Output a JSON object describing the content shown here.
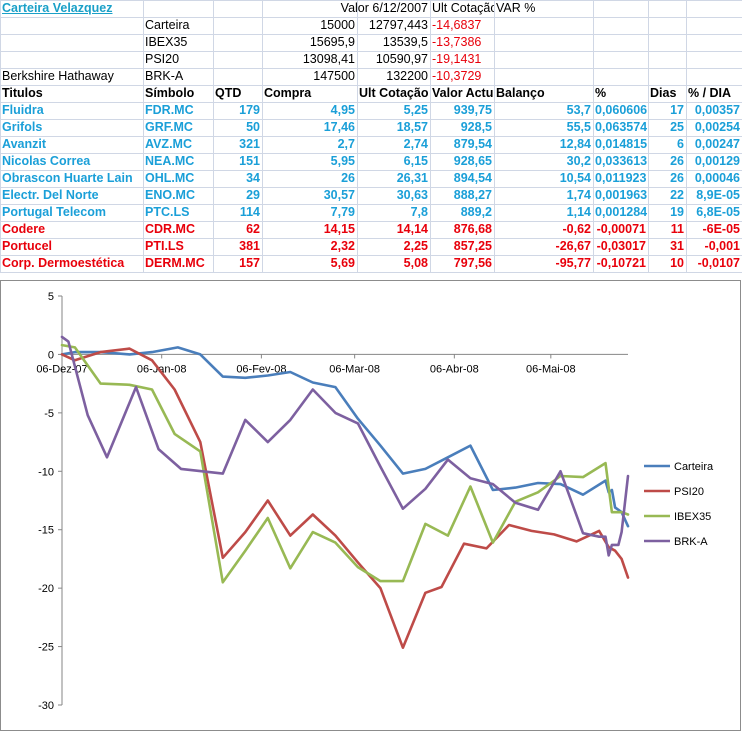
{
  "sheet": {
    "portfolio_title": "Carteira Velazquez",
    "header_row": {
      "valor": "Valor 6/12/2007",
      "ult": "Ult Cotação",
      "var": "VAR %"
    },
    "indices": [
      {
        "label": "Carteira",
        "valor": "15000",
        "ult": "12797,443",
        "var": "-14,6837"
      },
      {
        "label": "IBEX35",
        "valor": "15695,9",
        "ult": "13539,5",
        "var": "-13,7386"
      },
      {
        "label": "PSI20",
        "valor": "13098,41",
        "ult": "10590,97",
        "var": "-19,1431"
      },
      {
        "name": "Berkshire Hathaway",
        "label": "BRK-A",
        "valor": "147500",
        "ult": "132200",
        "var": "-10,3729"
      }
    ],
    "columns": [
      "Titulos",
      "Símbolo",
      "QTD",
      "Compra",
      "Ult Cotação",
      "Valor Actu",
      "Balanço",
      "%",
      "Dias",
      "% / DIA"
    ],
    "rows": [
      {
        "name": "Fluidra",
        "symbol": "FDR.MC",
        "qtd": "179",
        "compra": "4,95",
        "ult": "5,25",
        "valor": "939,75",
        "balanco": "53,7",
        "pct": "0,060606",
        "dias": "17",
        "pctdia": "0,00357",
        "positive": true
      },
      {
        "name": "Grifols",
        "symbol": "GRF.MC",
        "qtd": "50",
        "compra": "17,46",
        "ult": "18,57",
        "valor": "928,5",
        "balanco": "55,5",
        "pct": "0,063574",
        "dias": "25",
        "pctdia": "0,00254",
        "positive": true
      },
      {
        "name": "Avanzit",
        "symbol": "AVZ.MC",
        "qtd": "321",
        "compra": "2,7",
        "ult": "2,74",
        "valor": "879,54",
        "balanco": "12,84",
        "pct": "0,014815",
        "dias": "6",
        "pctdia": "0,00247",
        "positive": true
      },
      {
        "name": "Nicolas Correa",
        "symbol": "NEA.MC",
        "qtd": "151",
        "compra": "5,95",
        "ult": "6,15",
        "valor": "928,65",
        "balanco": "30,2",
        "pct": "0,033613",
        "dias": "26",
        "pctdia": "0,00129",
        "positive": true
      },
      {
        "name": "Obrascon Huarte Lain",
        "symbol": "OHL.MC",
        "qtd": "34",
        "compra": "26",
        "ult": "26,31",
        "valor": "894,54",
        "balanco": "10,54",
        "pct": "0,011923",
        "dias": "26",
        "pctdia": "0,00046",
        "positive": true
      },
      {
        "name": "Electr. Del Norte",
        "symbol": "ENO.MC",
        "qtd": "29",
        "compra": "30,57",
        "ult": "30,63",
        "valor": "888,27",
        "balanco": "1,74",
        "pct": "0,001963",
        "dias": "22",
        "pctdia": "8,9E-05",
        "positive": true
      },
      {
        "name": "Portugal Telecom",
        "symbol": "PTC.LS",
        "qtd": "114",
        "compra": "7,79",
        "ult": "7,8",
        "valor": "889,2",
        "balanco": "1,14",
        "pct": "0,001284",
        "dias": "19",
        "pctdia": "6,8E-05",
        "positive": true
      },
      {
        "name": "Codere",
        "symbol": "CDR.MC",
        "qtd": "62",
        "compra": "14,15",
        "ult": "14,14",
        "valor": "876,68",
        "balanco": "-0,62",
        "pct": "-0,00071",
        "dias": "11",
        "pctdia": "-6E-05",
        "positive": false
      },
      {
        "name": "Portucel",
        "symbol": "PTI.LS",
        "qtd": "381",
        "compra": "2,32",
        "ult": "2,25",
        "valor": "857,25",
        "balanco": "-26,67",
        "pct": "-0,03017",
        "dias": "31",
        "pctdia": "-0,001",
        "positive": false
      },
      {
        "name": "Corp. Dermoestética",
        "symbol": "DERM.MC",
        "qtd": "157",
        "compra": "5,69",
        "ult": "5,08",
        "valor": "797,56",
        "balanco": "-95,77",
        "pct": "-0,10721",
        "dias": "10",
        "pctdia": "-0,0107",
        "positive": false
      }
    ]
  },
  "chart_data": {
    "type": "line",
    "ylim": [
      -30,
      5
    ],
    "yticks": [
      5,
      0,
      -5,
      -10,
      -15,
      -20,
      -25,
      -30
    ],
    "xlim": [
      "2007-12-06",
      "2008-05-30"
    ],
    "xticks": [
      "06-Dez-07",
      "06-Jan-08",
      "06-Fev-08",
      "06-Mar-08",
      "06-Abr-08",
      "06-Mai-08"
    ],
    "xtick_dates": [
      "2007-12-06",
      "2008-01-06",
      "2008-02-06",
      "2008-03-06",
      "2008-04-06",
      "2008-05-06"
    ],
    "legend_position": "right",
    "series": [
      {
        "name": "Carteira",
        "color": "#4a7ebb",
        "points": [
          [
            "2007-12-06",
            0
          ],
          [
            "2007-12-10",
            0.2
          ],
          [
            "2007-12-18",
            0.2
          ],
          [
            "2007-12-27",
            0
          ],
          [
            "2008-01-03",
            0.2
          ],
          [
            "2008-01-11",
            0.6
          ],
          [
            "2008-01-18",
            0
          ],
          [
            "2008-01-25",
            -1.9
          ],
          [
            "2008-02-01",
            -2
          ],
          [
            "2008-02-08",
            -1.8
          ],
          [
            "2008-02-15",
            -1.5
          ],
          [
            "2008-02-22",
            -2.4
          ],
          [
            "2008-02-29",
            -2.8
          ],
          [
            "2008-03-07",
            -5.5
          ],
          [
            "2008-03-14",
            -7.8
          ],
          [
            "2008-03-21",
            -10.2
          ],
          [
            "2008-03-28",
            -9.8
          ],
          [
            "2008-04-04",
            -8.8
          ],
          [
            "2008-04-11",
            -7.8
          ],
          [
            "2008-04-18",
            -11.6
          ],
          [
            "2008-04-25",
            -11.4
          ],
          [
            "2008-05-02",
            -11
          ],
          [
            "2008-05-09",
            -11.1
          ],
          [
            "2008-05-16",
            -12
          ],
          [
            "2008-05-23",
            -10.8
          ],
          [
            "2008-05-24",
            -11.8
          ],
          [
            "2008-05-25",
            -11.6
          ],
          [
            "2008-05-26",
            -13.1
          ],
          [
            "2008-05-27",
            -13.3
          ],
          [
            "2008-05-28",
            -13.5
          ],
          [
            "2008-05-30",
            -14.7
          ]
        ]
      },
      {
        "name": "PSI20",
        "color": "#be4b48",
        "points": [
          [
            "2007-12-06",
            0
          ],
          [
            "2007-12-10",
            -0.5
          ],
          [
            "2007-12-18",
            0.2
          ],
          [
            "2007-12-27",
            0.5
          ],
          [
            "2008-01-03",
            -0.5
          ],
          [
            "2008-01-10",
            -3
          ],
          [
            "2008-01-18",
            -7.5
          ],
          [
            "2008-01-25",
            -17.4
          ],
          [
            "2008-02-01",
            -15.2
          ],
          [
            "2008-02-08",
            -12.5
          ],
          [
            "2008-02-15",
            -15.5
          ],
          [
            "2008-02-22",
            -13.7
          ],
          [
            "2008-02-29",
            -15.5
          ],
          [
            "2008-03-07",
            -17.8
          ],
          [
            "2008-03-14",
            -20
          ],
          [
            "2008-03-21",
            -25.1
          ],
          [
            "2008-03-28",
            -20.4
          ],
          [
            "2008-04-02",
            -19.9
          ],
          [
            "2008-04-09",
            -16.2
          ],
          [
            "2008-04-16",
            -16.6
          ],
          [
            "2008-04-23",
            -14.6
          ],
          [
            "2008-04-30",
            -15.1
          ],
          [
            "2008-05-07",
            -15.4
          ],
          [
            "2008-05-14",
            -16
          ],
          [
            "2008-05-21",
            -15.1
          ],
          [
            "2008-05-24",
            -16.5
          ],
          [
            "2008-05-26",
            -16.8
          ],
          [
            "2008-05-28",
            -17.5
          ],
          [
            "2008-05-30",
            -19.1
          ]
        ]
      },
      {
        "name": "IBEX35",
        "color": "#98b954",
        "points": [
          [
            "2007-12-06",
            0.8
          ],
          [
            "2007-12-10",
            0.6
          ],
          [
            "2007-12-18",
            -2.5
          ],
          [
            "2007-12-27",
            -2.6
          ],
          [
            "2008-01-03",
            -3
          ],
          [
            "2008-01-10",
            -6.8
          ],
          [
            "2008-01-18",
            -8.3
          ],
          [
            "2008-01-25",
            -19.5
          ],
          [
            "2008-02-01",
            -16.8
          ],
          [
            "2008-02-08",
            -14
          ],
          [
            "2008-02-15",
            -18.3
          ],
          [
            "2008-02-22",
            -15.2
          ],
          [
            "2008-02-29",
            -16.1
          ],
          [
            "2008-03-07",
            -18.2
          ],
          [
            "2008-03-14",
            -19.4
          ],
          [
            "2008-03-21",
            -19.4
          ],
          [
            "2008-03-28",
            -14.5
          ],
          [
            "2008-04-04",
            -15.5
          ],
          [
            "2008-04-11",
            -11.3
          ],
          [
            "2008-04-18",
            -16.1
          ],
          [
            "2008-04-25",
            -12.6
          ],
          [
            "2008-05-02",
            -11.8
          ],
          [
            "2008-05-09",
            -10.4
          ],
          [
            "2008-05-16",
            -10.5
          ],
          [
            "2008-05-23",
            -9.3
          ],
          [
            "2008-05-25",
            -13.5
          ],
          [
            "2008-05-28",
            -13.5
          ],
          [
            "2008-05-30",
            -13.7
          ]
        ]
      },
      {
        "name": "BRK-A",
        "color": "#7d60a0",
        "points": [
          [
            "2007-12-06",
            1.5
          ],
          [
            "2007-12-08",
            1.1
          ],
          [
            "2007-12-14",
            -5.2
          ],
          [
            "2007-12-20",
            -8.8
          ],
          [
            "2007-12-29",
            -2.8
          ],
          [
            "2008-01-05",
            -8.1
          ],
          [
            "2008-01-12",
            -9.8
          ],
          [
            "2008-01-25",
            -10.2
          ],
          [
            "2008-02-01",
            -5.6
          ],
          [
            "2008-02-08",
            -7.5
          ],
          [
            "2008-02-15",
            -5.6
          ],
          [
            "2008-02-22",
            -3
          ],
          [
            "2008-02-29",
            -5
          ],
          [
            "2008-03-07",
            -5.9
          ],
          [
            "2008-03-14",
            -9.6
          ],
          [
            "2008-03-21",
            -13.2
          ],
          [
            "2008-03-28",
            -11.5
          ],
          [
            "2008-04-04",
            -9
          ],
          [
            "2008-04-11",
            -10.6
          ],
          [
            "2008-04-18",
            -11.1
          ],
          [
            "2008-04-25",
            -12.7
          ],
          [
            "2008-05-02",
            -13.3
          ],
          [
            "2008-05-09",
            -10
          ],
          [
            "2008-05-16",
            -15.3
          ],
          [
            "2008-05-21",
            -15.6
          ],
          [
            "2008-05-23",
            -15.6
          ],
          [
            "2008-05-24",
            -17.2
          ],
          [
            "2008-05-25",
            -16.3
          ],
          [
            "2008-05-27",
            -16.3
          ],
          [
            "2008-05-28",
            -15.2
          ],
          [
            "2008-05-30",
            -10.4
          ]
        ]
      }
    ]
  }
}
